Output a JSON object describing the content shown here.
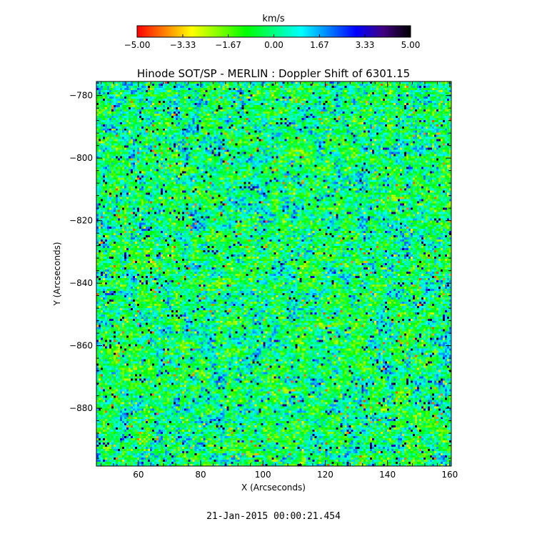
{
  "chart_data": {
    "type": "heatmap",
    "title": "Hinode SOT/SP - MERLIN : Doppler Shift of 6301.15",
    "xlabel": "X (Arcseconds)",
    "ylabel": "Y (Arcseconds)",
    "xlim": [
      46.5,
      160.5
    ],
    "ylim": [
      -898.5,
      -775.5
    ],
    "x_ticks": [
      60,
      80,
      100,
      120,
      140,
      160
    ],
    "x_tick_labels": [
      "60",
      "80",
      "100",
      "120",
      "140",
      "160"
    ],
    "y_ticks": [
      -780,
      -800,
      -820,
      -840,
      -860,
      -880
    ],
    "y_tick_labels": [
      "−780",
      "−800",
      "−820",
      "−840",
      "−860",
      "−880"
    ],
    "colorbar": {
      "label": "km/s",
      "range": [
        -5.0,
        5.0
      ],
      "ticks": [
        -5.0,
        -3.33,
        -1.67,
        0.0,
        1.67,
        3.33,
        5.0
      ],
      "tick_labels": [
        "−5.00",
        "−3.33",
        "−1.67",
        "0.00",
        "1.67",
        "3.33",
        "5.00"
      ],
      "colormap": [
        "#ff0000",
        "#ff8000",
        "#ffff00",
        "#80ff00",
        "#00ff00",
        "#00ff80",
        "#00ffff",
        "#0080ff",
        "#0000ff",
        "#400080",
        "#000000"
      ]
    },
    "field_character": "granulation pattern, mostly near 0 km/s with scattered redshift (+3 to +5) and blueshift (-3 to -5) patches"
  },
  "footer": {
    "timestamp": "21-Jan-2015 00:00:21.454"
  }
}
